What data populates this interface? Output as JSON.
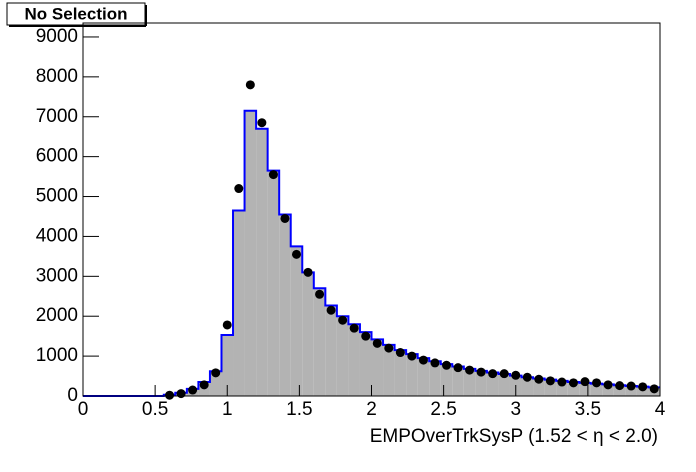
{
  "chart_data": {
    "type": "histogram",
    "title": "No Selection",
    "x_label": "EMPOverTrkSysP (1.52 <   η < 2.0)",
    "bins": [
      0,
      0.08,
      0.16,
      0.24,
      0.32,
      0.4,
      0.48,
      0.56,
      0.64,
      0.72,
      0.8,
      0.88,
      0.96,
      1.04,
      1.12,
      1.2,
      1.28,
      1.36,
      1.44,
      1.52,
      1.6,
      1.68,
      1.76,
      1.84,
      1.92,
      2,
      2.08,
      2.16,
      2.24,
      2.32,
      2.4,
      2.48,
      2.56,
      2.64,
      2.72,
      2.8,
      2.88,
      2.96,
      3.04,
      3.12,
      3.2,
      3.28,
      3.36,
      3.44,
      3.52,
      3.6,
      3.68,
      3.76,
      3.84,
      3.92,
      4
    ],
    "counts": [
      0,
      0,
      0,
      0,
      0,
      0,
      0,
      30,
      80,
      180,
      350,
      620,
      1530,
      4650,
      7150,
      6700,
      5650,
      4550,
      3750,
      3100,
      2700,
      2270,
      2000,
      1800,
      1600,
      1420,
      1280,
      1150,
      1050,
      950,
      870,
      800,
      740,
      680,
      630,
      590,
      550,
      510,
      470,
      440,
      410,
      380,
      350,
      330,
      310,
      290,
      270,
      250,
      235,
      215
    ],
    "fill_color": "#b3b3b3",
    "line_color": "#0000ff",
    "points": {
      "color": "#000000",
      "x": [
        0.04,
        0.12,
        0.2,
        0.28,
        0.36,
        0.44,
        0.52,
        0.6,
        0.68,
        0.76,
        0.84,
        0.92,
        1,
        1.08,
        1.16,
        1.24,
        1.32,
        1.4,
        1.48,
        1.56,
        1.64,
        1.72,
        1.8,
        1.88,
        1.96,
        2.04,
        2.12,
        2.2,
        2.28,
        2.36,
        2.44,
        2.52,
        2.6,
        2.68,
        2.76,
        2.84,
        2.92,
        3,
        3.08,
        3.16,
        3.24,
        3.32,
        3.4,
        3.48,
        3.56,
        3.64,
        3.72,
        3.8,
        3.88,
        3.96
      ],
      "values": [
        null,
        null,
        null,
        null,
        null,
        null,
        null,
        20,
        60,
        150,
        280,
        580,
        1780,
        5200,
        7800,
        6850,
        5550,
        4450,
        3550,
        3100,
        2550,
        2150,
        1900,
        1700,
        1500,
        1320,
        1200,
        1090,
        1000,
        900,
        830,
        770,
        710,
        650,
        600,
        560,
        560,
        520,
        470,
        420,
        380,
        350,
        330,
        360,
        330,
        280,
        260,
        250,
        230,
        180
      ]
    },
    "xlim": [
      0,
      4
    ],
    "xticks": [
      0,
      0.5,
      1,
      1.5,
      2,
      2.5,
      3,
      3.5,
      4
    ],
    "ylim": [
      0,
      9350
    ],
    "yticks": [
      0,
      1000,
      2000,
      3000,
      4000,
      5000,
      6000,
      7000,
      8000,
      9000
    ]
  }
}
